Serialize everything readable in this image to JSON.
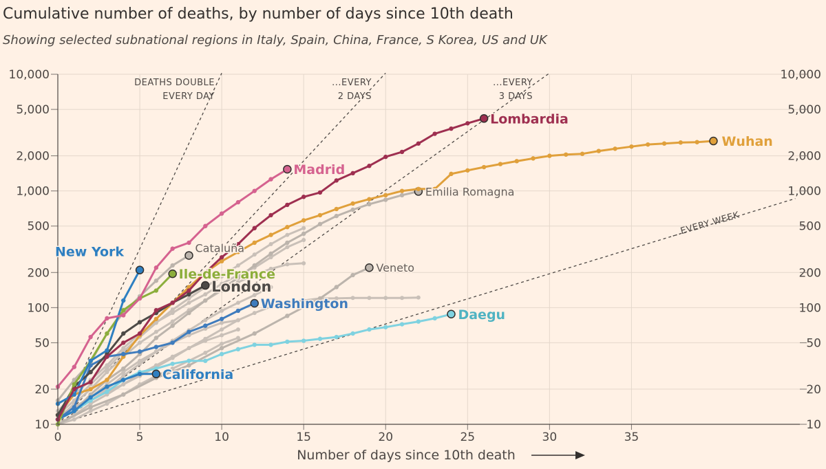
{
  "header": {
    "title": "Cumulative number of deaths, by number of days since 10th death",
    "subtitle": "Showing selected subnational regions in Italy, Spain, China, France, S Korea, US and UK"
  },
  "chart_data": {
    "type": "line",
    "title": "Cumulative number of deaths, by number of days since 10th death",
    "subtitle": "Showing selected subnational regions in Italy, Spain, China, France, S Korea, US and UK",
    "xlabel": "Number of days since 10th death",
    "xlim": [
      0,
      45
    ],
    "x_ticks": [
      0,
      5,
      10,
      15,
      20,
      25,
      30,
      35
    ],
    "yscale": "log",
    "ylim": [
      10,
      10000
    ],
    "y_ticks": [
      10,
      20,
      50,
      100,
      200,
      500,
      1000,
      2000,
      5000,
      10000
    ],
    "y_tick_labels": [
      "10",
      "20",
      "50",
      "100",
      "200",
      "500",
      "1,000",
      "2,000",
      "5,000",
      "10,000"
    ],
    "grid": true,
    "colors": {
      "background": "#fff1e5",
      "grid": "#e4d7cb",
      "background_series": "#c9c0b8",
      "madrid": "#d5628f",
      "lombardia": "#9e2f50",
      "wuhan": "#e0a03b",
      "new_york": "#2e7fc1",
      "ile_de_france": "#8cae3c",
      "london": "#4d4a47",
      "washington": "#3f7cbd",
      "california": "#2e7fc1",
      "daegu": "#7fd2e0",
      "labelled_grey": "#bcb4ac"
    },
    "reference_lines": [
      {
        "label_lines": [
          "DEATHS DOUBLE",
          "EVERY DAY"
        ],
        "doubling_days": 1
      },
      {
        "label_lines": [
          "...EVERY",
          "2 DAYS"
        ],
        "doubling_days": 2
      },
      {
        "label_lines": [
          "...EVERY",
          "3 DAYS"
        ],
        "doubling_days": 3
      },
      {
        "label_lines": [
          "...EVERY WEEK"
        ],
        "doubling_days": 7
      }
    ],
    "series": [
      {
        "name": "Madrid",
        "key": "madrid",
        "x": [
          0,
          1,
          2,
          3,
          4,
          5,
          6,
          7,
          8,
          9,
          10,
          11,
          12,
          13,
          14
        ],
        "y": [
          21,
          31,
          56,
          81,
          86,
          120,
          220,
          320,
          360,
          500,
          640,
          800,
          1000,
          1260,
          1535
        ]
      },
      {
        "name": "Lombardia",
        "key": "lombardia",
        "x": [
          0,
          1,
          2,
          3,
          4,
          5,
          6,
          7,
          8,
          9,
          10,
          11,
          12,
          13,
          14,
          15,
          16,
          17,
          18,
          19,
          20,
          21,
          22,
          23,
          24,
          25,
          26
        ],
        "y": [
          11,
          20,
          23,
          38,
          50,
          60,
          95,
          110,
          140,
          200,
          270,
          350,
          480,
          620,
          760,
          890,
          970,
          1230,
          1420,
          1640,
          1960,
          2160,
          2550,
          3090,
          3420,
          3800,
          4180
        ]
      },
      {
        "name": "Wuhan",
        "key": "wuhan",
        "x": [
          0,
          1,
          2,
          3,
          4,
          5,
          6,
          7,
          8,
          9,
          10,
          11,
          12,
          13,
          14,
          15,
          16,
          17,
          18,
          19,
          20,
          21,
          22,
          23,
          24,
          25,
          26,
          27,
          28,
          29,
          30,
          31,
          32,
          33,
          34,
          35,
          36,
          37,
          38,
          39,
          40
        ],
        "y": [
          12,
          18,
          20,
          24,
          38,
          58,
          80,
          110,
          150,
          200,
          250,
          300,
          360,
          420,
          490,
          560,
          620,
          700,
          780,
          850,
          920,
          1000,
          1040,
          1040,
          1400,
          1500,
          1600,
          1700,
          1800,
          1900,
          2000,
          2050,
          2080,
          2200,
          2300,
          2400,
          2500,
          2550,
          2600,
          2620,
          2680
        ]
      },
      {
        "name": "New York",
        "key": "new_york",
        "x": [
          0,
          1,
          2,
          3,
          4,
          5
        ],
        "y": [
          15,
          18,
          35,
          43,
          115,
          210
        ]
      },
      {
        "name": "Ile-de-France",
        "key": "ile_de_france",
        "x": [
          0,
          1,
          2,
          3,
          4,
          5,
          6,
          7
        ],
        "y": [
          10,
          22,
          35,
          60,
          95,
          120,
          140,
          195
        ]
      },
      {
        "name": "London",
        "key": "london",
        "x": [
          0,
          1,
          2,
          3,
          4,
          5,
          6,
          7,
          8,
          9
        ],
        "y": [
          12,
          21,
          28,
          40,
          60,
          75,
          90,
          110,
          130,
          155
        ]
      },
      {
        "name": "Washington",
        "key": "washington",
        "x": [
          0,
          1,
          2,
          3,
          4,
          5,
          6,
          7,
          8,
          9,
          10,
          11,
          12
        ],
        "y": [
          11,
          14,
          32,
          38,
          40,
          42,
          46,
          50,
          62,
          70,
          80,
          94,
          109
        ]
      },
      {
        "name": "California",
        "key": "california",
        "x": [
          0,
          1,
          2,
          3,
          4,
          5,
          6
        ],
        "y": [
          11,
          13,
          17,
          21,
          24,
          27,
          27
        ]
      },
      {
        "name": "Daegu",
        "key": "daegu",
        "x": [
          0,
          1,
          2,
          3,
          4,
          5,
          6,
          7,
          8,
          9,
          10,
          11,
          12,
          13,
          14,
          15,
          16,
          17,
          18,
          19,
          20,
          21,
          22,
          23,
          24
        ],
        "y": [
          11,
          13,
          16,
          19,
          24,
          28,
          30,
          33,
          35,
          35,
          40,
          44,
          48,
          48,
          51,
          52,
          54,
          56,
          60,
          65,
          68,
          72,
          76,
          81,
          88
        ]
      },
      {
        "name": "Cataluña",
        "key": "cataluna",
        "x": [
          0,
          1,
          2,
          3,
          4,
          5,
          6,
          7,
          8
        ],
        "y": [
          16,
          24,
          34,
          60,
          90,
          125,
          170,
          230,
          280
        ]
      },
      {
        "name": "Emilia Romagna",
        "key": "emilia",
        "x": [
          0,
          1,
          2,
          3,
          4,
          5,
          6,
          7,
          8,
          9,
          10,
          11,
          12,
          13,
          14,
          15,
          16,
          17,
          18,
          19,
          20,
          21,
          22
        ],
        "y": [
          11,
          13,
          18,
          24,
          30,
          40,
          55,
          70,
          90,
          115,
          145,
          180,
          230,
          290,
          360,
          430,
          520,
          610,
          690,
          770,
          840,
          920,
          990
        ]
      },
      {
        "name": "Veneto",
        "key": "veneto",
        "x": [
          0,
          2,
          4,
          6,
          8,
          10,
          12,
          14,
          16,
          17,
          18,
          19
        ],
        "y": [
          10,
          14,
          18,
          25,
          32,
          45,
          60,
          85,
          120,
          150,
          190,
          220
        ]
      }
    ],
    "background_series": [
      {
        "x": [
          0,
          1,
          2,
          3,
          4,
          5,
          6,
          7,
          8,
          9,
          10,
          11,
          12,
          13,
          14,
          15
        ],
        "y": [
          13,
          18,
          24,
          32,
          45,
          60,
          75,
          90,
          110,
          130,
          160,
          190,
          220,
          270,
          330,
          380
        ]
      },
      {
        "x": [
          0,
          1,
          2,
          3,
          4,
          5,
          6,
          7,
          8,
          9,
          10,
          11,
          12,
          13,
          14,
          15
        ],
        "y": [
          11,
          15,
          20,
          28,
          38,
          50,
          62,
          76,
          95,
          115,
          140,
          165,
          190,
          215,
          235,
          240
        ]
      },
      {
        "x": [
          0,
          1,
          2,
          3,
          4,
          5,
          6,
          7,
          8,
          9,
          10,
          11
        ],
        "y": [
          10,
          12,
          15,
          18,
          22,
          27,
          32,
          38,
          45,
          52,
          58,
          65
        ]
      },
      {
        "x": [
          0,
          1,
          2,
          3,
          4,
          5,
          6,
          7,
          8,
          9,
          10,
          11
        ],
        "y": [
          10,
          11,
          13,
          15,
          18,
          22,
          26,
          30,
          35,
          41,
          49,
          55
        ]
      },
      {
        "x": [
          0,
          1,
          2,
          3,
          4,
          5,
          6,
          7,
          8,
          9,
          10,
          11,
          12,
          13
        ],
        "y": [
          11,
          13,
          16,
          20,
          26,
          33,
          42,
          52,
          64,
          78,
          94,
          110,
          128,
          150
        ]
      },
      {
        "x": [
          0,
          1,
          2,
          3,
          4,
          5,
          6,
          7,
          8,
          9,
          10,
          11,
          12,
          13,
          14,
          15,
          16,
          17,
          18,
          19,
          20,
          21,
          22
        ],
        "y": [
          12,
          14,
          16,
          19,
          22,
          26,
          31,
          37,
          45,
          54,
          65,
          78,
          90,
          102,
          110,
          115,
          120,
          120,
          121,
          121,
          121,
          121,
          122
        ]
      },
      {
        "x": [
          0,
          1,
          2,
          3,
          4,
          5,
          6,
          7,
          8,
          9,
          10,
          11
        ],
        "y": [
          11,
          14,
          17,
          22,
          28,
          35,
          42,
          50,
          58,
          66,
          74,
          78
        ]
      },
      {
        "x": [
          0,
          1,
          2,
          3,
          4,
          5,
          6,
          7,
          8,
          9,
          10,
          11,
          12,
          13,
          14,
          15
        ],
        "y": [
          12,
          16,
          22,
          30,
          42,
          56,
          74,
          96,
          120,
          150,
          185,
          230,
          285,
          350,
          420,
          480
        ]
      }
    ],
    "annotations": {
      "labels": {
        "madrid": "Madrid",
        "lombardia": "Lombardia",
        "wuhan": "Wuhan",
        "new_york": "New York",
        "ile_de_france": "Ile-de-France",
        "london": "London",
        "washington": "Washington",
        "california": "California",
        "daegu": "Daegu",
        "cataluna": "Cataluña",
        "emilia": "Emilia Romagna",
        "veneto": "Veneto"
      }
    }
  }
}
